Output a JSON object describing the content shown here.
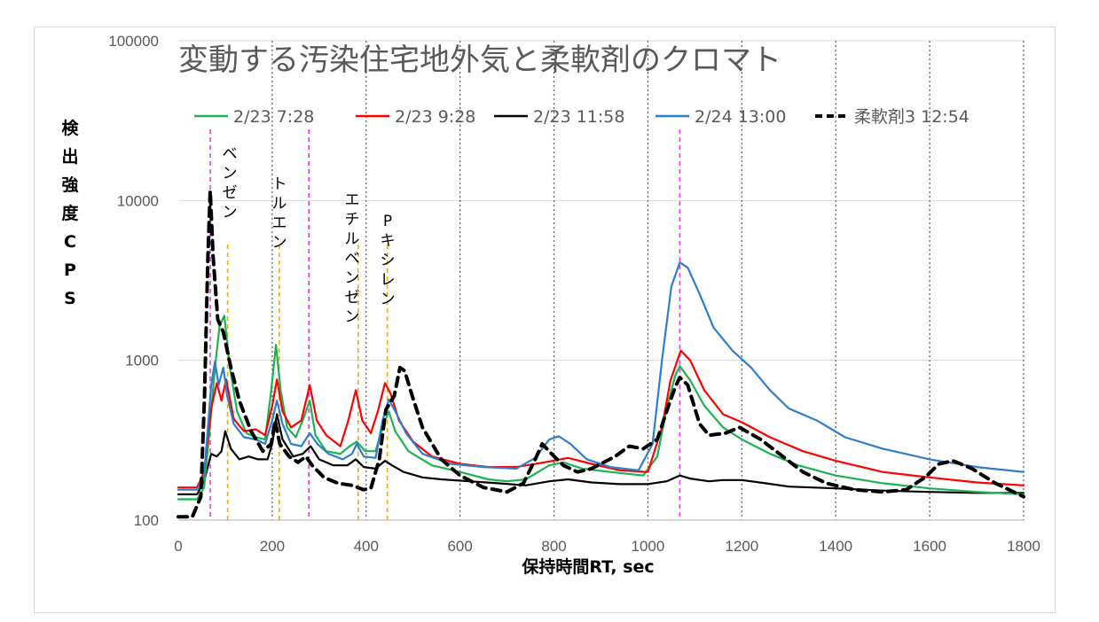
{
  "chart_data": {
    "type": "line",
    "title": "変動する汚染住宅地外気と柔軟剤のクロマト",
    "xlabel": "保持時間RT, sec",
    "ylabel": "検出強度CPS",
    "xlim": [
      0,
      1800
    ],
    "ylim": [
      100,
      100000
    ],
    "y_scale": "log",
    "x_ticks": [
      "0",
      "200",
      "400",
      "600",
      "800",
      "1000",
      "1200",
      "1400",
      "1600",
      "1800"
    ],
    "y_ticks": [
      "100",
      "1000",
      "10000",
      "100000"
    ],
    "grid": "vertical dotted lines at each x tick, horizontal lines at each decade",
    "legend_position": "top",
    "annotations": [
      {
        "text": "ベンゼン",
        "x": 105
      },
      {
        "text": "トルエン",
        "x": 210
      },
      {
        "text": "エチルベンゼン",
        "x": 380
      },
      {
        "text": "Pキシレン",
        "x": 445
      }
    ],
    "magenta_markers": [
      68,
      278,
      1068
    ],
    "yellow_markers": [
      105,
      215,
      383,
      445
    ],
    "series": [
      {
        "name": "2/23 7:28",
        "color": "#1db254",
        "dash": false,
        "points": [
          [
            0,
            135
          ],
          [
            40,
            135
          ],
          [
            55,
            160
          ],
          [
            68,
            400
          ],
          [
            78,
            900
          ],
          [
            88,
            1650
          ],
          [
            98,
            1900
          ],
          [
            110,
            900
          ],
          [
            125,
            480
          ],
          [
            145,
            350
          ],
          [
            165,
            330
          ],
          [
            185,
            320
          ],
          [
            198,
            650
          ],
          [
            208,
            1250
          ],
          [
            218,
            650
          ],
          [
            232,
            380
          ],
          [
            250,
            330
          ],
          [
            265,
            420
          ],
          [
            280,
            560
          ],
          [
            292,
            340
          ],
          [
            315,
            270
          ],
          [
            345,
            260
          ],
          [
            365,
            290
          ],
          [
            380,
            310
          ],
          [
            398,
            270
          ],
          [
            420,
            270
          ],
          [
            435,
            380
          ],
          [
            448,
            480
          ],
          [
            462,
            360
          ],
          [
            490,
            270
          ],
          [
            540,
            220
          ],
          [
            600,
            200
          ],
          [
            660,
            180
          ],
          [
            700,
            175
          ],
          [
            740,
            180
          ],
          [
            790,
            220
          ],
          [
            820,
            230
          ],
          [
            860,
            210
          ],
          [
            920,
            200
          ],
          [
            990,
            190
          ],
          [
            1020,
            250
          ],
          [
            1040,
            500
          ],
          [
            1058,
            800
          ],
          [
            1068,
            920
          ],
          [
            1090,
            750
          ],
          [
            1120,
            520
          ],
          [
            1160,
            380
          ],
          [
            1200,
            320
          ],
          [
            1260,
            260
          ],
          [
            1320,
            220
          ],
          [
            1400,
            190
          ],
          [
            1500,
            170
          ],
          [
            1600,
            158
          ],
          [
            1700,
            150
          ],
          [
            1800,
            145
          ]
        ]
      },
      {
        "name": "2/23 9:28",
        "color": "#ff0000",
        "dash": false,
        "points": [
          [
            0,
            160
          ],
          [
            40,
            160
          ],
          [
            55,
            200
          ],
          [
            70,
            500
          ],
          [
            82,
            720
          ],
          [
            92,
            560
          ],
          [
            102,
            760
          ],
          [
            118,
            430
          ],
          [
            140,
            360
          ],
          [
            165,
            370
          ],
          [
            185,
            340
          ],
          [
            200,
            520
          ],
          [
            210,
            760
          ],
          [
            222,
            480
          ],
          [
            240,
            380
          ],
          [
            262,
            420
          ],
          [
            280,
            700
          ],
          [
            295,
            420
          ],
          [
            315,
            340
          ],
          [
            345,
            290
          ],
          [
            362,
            420
          ],
          [
            378,
            650
          ],
          [
            392,
            420
          ],
          [
            410,
            350
          ],
          [
            425,
            480
          ],
          [
            440,
            720
          ],
          [
            452,
            620
          ],
          [
            470,
            420
          ],
          [
            500,
            310
          ],
          [
            540,
            250
          ],
          [
            600,
            225
          ],
          [
            660,
            215
          ],
          [
            720,
            215
          ],
          [
            780,
            230
          ],
          [
            830,
            245
          ],
          [
            880,
            225
          ],
          [
            940,
            205
          ],
          [
            1000,
            200
          ],
          [
            1030,
            380
          ],
          [
            1048,
            750
          ],
          [
            1070,
            1150
          ],
          [
            1090,
            1000
          ],
          [
            1120,
            650
          ],
          [
            1160,
            460
          ],
          [
            1200,
            410
          ],
          [
            1260,
            330
          ],
          [
            1330,
            270
          ],
          [
            1400,
            235
          ],
          [
            1500,
            200
          ],
          [
            1600,
            185
          ],
          [
            1700,
            172
          ],
          [
            1800,
            165
          ]
        ]
      },
      {
        "name": "2/23 11:58",
        "color": "#000000",
        "dash": false,
        "points": [
          [
            0,
            145
          ],
          [
            40,
            145
          ],
          [
            55,
            175
          ],
          [
            70,
            260
          ],
          [
            82,
            250
          ],
          [
            92,
            270
          ],
          [
            100,
            360
          ],
          [
            112,
            280
          ],
          [
            130,
            240
          ],
          [
            150,
            250
          ],
          [
            170,
            240
          ],
          [
            190,
            240
          ],
          [
            200,
            300
          ],
          [
            210,
            460
          ],
          [
            222,
            320
          ],
          [
            245,
            250
          ],
          [
            265,
            260
          ],
          [
            282,
            290
          ],
          [
            300,
            240
          ],
          [
            330,
            220
          ],
          [
            360,
            220
          ],
          [
            378,
            240
          ],
          [
            395,
            215
          ],
          [
            420,
            210
          ],
          [
            440,
            235
          ],
          [
            455,
            220
          ],
          [
            480,
            200
          ],
          [
            520,
            185
          ],
          [
            560,
            180
          ],
          [
            620,
            175
          ],
          [
            680,
            170
          ],
          [
            740,
            165
          ],
          [
            790,
            175
          ],
          [
            830,
            180
          ],
          [
            880,
            172
          ],
          [
            940,
            168
          ],
          [
            1000,
            168
          ],
          [
            1040,
            175
          ],
          [
            1068,
            190
          ],
          [
            1090,
            182
          ],
          [
            1130,
            175
          ],
          [
            1160,
            178
          ],
          [
            1200,
            178
          ],
          [
            1250,
            170
          ],
          [
            1300,
            162
          ],
          [
            1400,
            158
          ],
          [
            1500,
            153
          ],
          [
            1600,
            150
          ],
          [
            1700,
            148
          ],
          [
            1800,
            148
          ]
        ]
      },
      {
        "name": "2/24 13:00",
        "color": "#2f7ec9",
        "dash": false,
        "points": [
          [
            0,
            155
          ],
          [
            40,
            155
          ],
          [
            55,
            190
          ],
          [
            70,
            700
          ],
          [
            78,
            980
          ],
          [
            86,
            700
          ],
          [
            96,
            900
          ],
          [
            104,
            600
          ],
          [
            118,
            400
          ],
          [
            140,
            330
          ],
          [
            165,
            320
          ],
          [
            185,
            300
          ],
          [
            200,
            420
          ],
          [
            210,
            560
          ],
          [
            222,
            400
          ],
          [
            240,
            300
          ],
          [
            262,
            290
          ],
          [
            280,
            350
          ],
          [
            296,
            300
          ],
          [
            320,
            260
          ],
          [
            350,
            240
          ],
          [
            370,
            260
          ],
          [
            380,
            300
          ],
          [
            395,
            250
          ],
          [
            420,
            245
          ],
          [
            435,
            420
          ],
          [
            448,
            570
          ],
          [
            462,
            480
          ],
          [
            485,
            350
          ],
          [
            520,
            260
          ],
          [
            580,
            225
          ],
          [
            650,
            215
          ],
          [
            720,
            210
          ],
          [
            760,
            245
          ],
          [
            790,
            320
          ],
          [
            810,
            335
          ],
          [
            835,
            300
          ],
          [
            870,
            240
          ],
          [
            920,
            215
          ],
          [
            980,
            205
          ],
          [
            1010,
            300
          ],
          [
            1030,
            1000
          ],
          [
            1050,
            2900
          ],
          [
            1068,
            4100
          ],
          [
            1085,
            3800
          ],
          [
            1110,
            2600
          ],
          [
            1140,
            1600
          ],
          [
            1180,
            1150
          ],
          [
            1220,
            900
          ],
          [
            1260,
            650
          ],
          [
            1300,
            500
          ],
          [
            1360,
            420
          ],
          [
            1420,
            330
          ],
          [
            1500,
            280
          ],
          [
            1600,
            240
          ],
          [
            1700,
            215
          ],
          [
            1800,
            200
          ]
        ]
      },
      {
        "name": "柔軟剤3 12:54",
        "color": "#000000",
        "dash": true,
        "points": [
          [
            0,
            105
          ],
          [
            30,
            105
          ],
          [
            48,
            140
          ],
          [
            56,
            600
          ],
          [
            63,
            4500
          ],
          [
            68,
            11500
          ],
          [
            74,
            4500
          ],
          [
            84,
            1800
          ],
          [
            96,
            1500
          ],
          [
            112,
            900
          ],
          [
            130,
            560
          ],
          [
            155,
            360
          ],
          [
            180,
            270
          ],
          [
            198,
            300
          ],
          [
            206,
            420
          ],
          [
            216,
            300
          ],
          [
            236,
            250
          ],
          [
            255,
            230
          ],
          [
            272,
            250
          ],
          [
            285,
            220
          ],
          [
            310,
            185
          ],
          [
            340,
            170
          ],
          [
            370,
            165
          ],
          [
            395,
            155
          ],
          [
            410,
            158
          ],
          [
            428,
            240
          ],
          [
            442,
            490
          ],
          [
            460,
            600
          ],
          [
            472,
            900
          ],
          [
            482,
            860
          ],
          [
            498,
            600
          ],
          [
            520,
            380
          ],
          [
            560,
            240
          ],
          [
            600,
            190
          ],
          [
            650,
            160
          ],
          [
            700,
            150
          ],
          [
            735,
            170
          ],
          [
            760,
            240
          ],
          [
            775,
            300
          ],
          [
            795,
            260
          ],
          [
            820,
            220
          ],
          [
            850,
            200
          ],
          [
            880,
            210
          ],
          [
            930,
            250
          ],
          [
            960,
            290
          ],
          [
            990,
            280
          ],
          [
            1020,
            320
          ],
          [
            1040,
            480
          ],
          [
            1058,
            680
          ],
          [
            1068,
            780
          ],
          [
            1085,
            700
          ],
          [
            1110,
            400
          ],
          [
            1130,
            340
          ],
          [
            1165,
            350
          ],
          [
            1195,
            380
          ],
          [
            1240,
            320
          ],
          [
            1280,
            260
          ],
          [
            1330,
            200
          ],
          [
            1380,
            170
          ],
          [
            1440,
            155
          ],
          [
            1500,
            150
          ],
          [
            1550,
            155
          ],
          [
            1590,
            185
          ],
          [
            1620,
            225
          ],
          [
            1650,
            235
          ],
          [
            1690,
            210
          ],
          [
            1740,
            170
          ],
          [
            1800,
            140
          ]
        ]
      }
    ]
  }
}
